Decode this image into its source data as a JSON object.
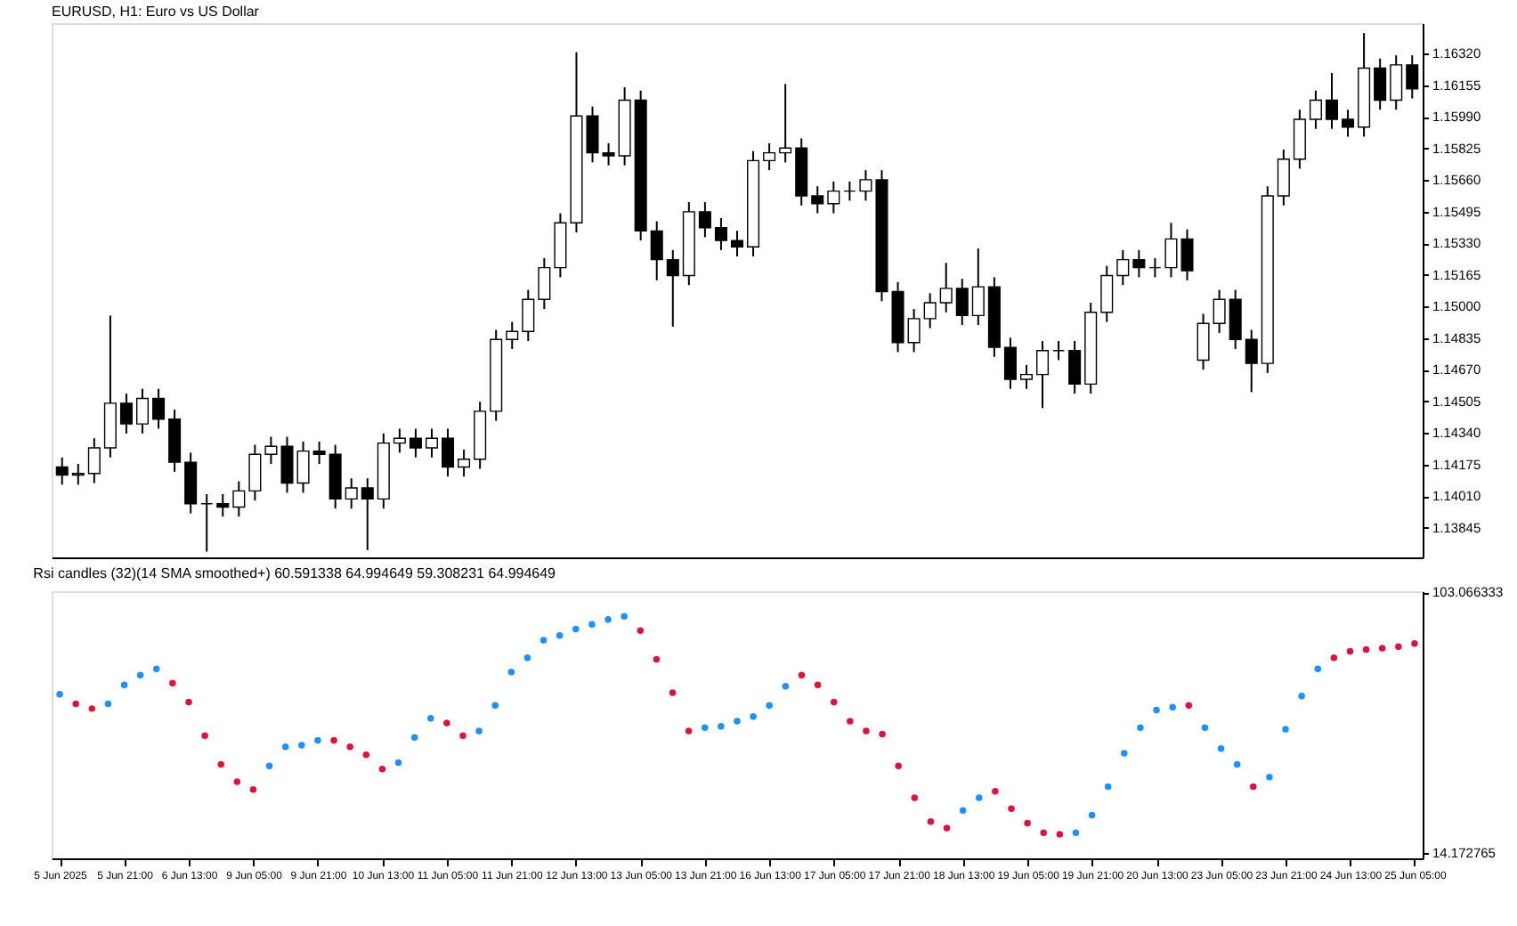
{
  "chart_data": [
    {
      "type": "candlestick",
      "title": "EURUSD, H1:  Euro vs US Dollar",
      "color": "#000000",
      "tick_labels": "y",
      "categories": [
        null,
        null,
        null,
        null,
        null,
        null,
        null,
        null,
        null,
        null,
        null,
        null,
        null,
        null,
        null,
        null,
        null,
        null,
        null,
        null,
        null,
        null,
        null,
        null,
        null,
        null,
        null,
        null,
        null,
        null,
        null,
        null,
        null,
        null,
        null,
        null,
        null,
        null,
        null,
        null,
        null,
        null,
        null,
        null,
        null,
        null,
        null,
        null,
        null,
        null,
        null,
        null,
        null,
        null,
        null,
        null,
        null,
        null,
        null,
        null,
        null,
        null,
        null,
        null,
        null,
        null,
        null,
        null,
        null,
        null,
        null,
        null,
        null,
        null,
        null,
        null,
        null,
        null,
        null,
        null,
        null,
        null,
        null,
        null,
        null
      ],
      "ohlc": [
        [
          1.14162,
          1.14212,
          1.1407,
          1.1412
        ],
        [
          1.1412,
          1.14178,
          1.1407,
          1.14128
        ],
        [
          1.14128,
          1.14312,
          1.14078,
          1.14262
        ],
        [
          1.14262,
          1.14953,
          1.14212,
          1.14495
        ],
        [
          1.14495,
          1.14545,
          1.14337,
          1.14387
        ],
        [
          1.14387,
          1.1457,
          1.14337,
          1.1452
        ],
        [
          1.1452,
          1.1457,
          1.14362,
          1.14412
        ],
        [
          1.14412,
          1.14462,
          1.14137,
          1.14187
        ],
        [
          1.14187,
          1.14237,
          1.1392,
          1.1397
        ],
        [
          1.1397,
          1.1402,
          1.1372,
          1.1397
        ],
        [
          1.1397,
          1.1402,
          1.13903,
          1.13953
        ],
        [
          1.13953,
          1.14087,
          1.13903,
          1.14037
        ],
        [
          1.14037,
          1.14278,
          1.13987,
          1.14228
        ],
        [
          1.14228,
          1.1432,
          1.14178,
          1.1427
        ],
        [
          1.1427,
          1.1432,
          1.14028,
          1.14078
        ],
        [
          1.14078,
          1.14295,
          1.14028,
          1.14245
        ],
        [
          1.14245,
          1.14295,
          1.14178,
          1.14228
        ],
        [
          1.14228,
          1.14278,
          1.13945,
          1.13995
        ],
        [
          1.13995,
          1.14103,
          1.13945,
          1.14053
        ],
        [
          1.14053,
          1.14103,
          1.13728,
          1.13995
        ],
        [
          1.13995,
          1.14337,
          1.13945,
          1.14287
        ],
        [
          1.14287,
          1.14362,
          1.14237,
          1.14312
        ],
        [
          1.14312,
          1.14362,
          1.14212,
          1.14262
        ],
        [
          1.14262,
          1.14362,
          1.14212,
          1.14312
        ],
        [
          1.14312,
          1.14362,
          1.14112,
          1.14162
        ],
        [
          1.14162,
          1.14253,
          1.14112,
          1.14203
        ],
        [
          1.14203,
          1.14503,
          1.14153,
          1.14453
        ],
        [
          1.14453,
          1.14878,
          1.14403,
          1.14828
        ],
        [
          1.14828,
          1.1492,
          1.14778,
          1.1487
        ],
        [
          1.1487,
          1.15087,
          1.1482,
          1.15037
        ],
        [
          1.15037,
          1.15253,
          1.14987,
          1.15203
        ],
        [
          1.15203,
          1.15487,
          1.15153,
          1.15437
        ],
        [
          1.15437,
          1.16328,
          1.15387,
          1.15995
        ],
        [
          1.15995,
          1.16045,
          1.15753,
          1.15803
        ],
        [
          1.15803,
          1.15853,
          1.15737,
          1.15787
        ],
        [
          1.15787,
          1.16145,
          1.15737,
          1.16078
        ],
        [
          1.16078,
          1.16128,
          1.15345,
          1.15395
        ],
        [
          1.15395,
          1.15445,
          1.15137,
          1.15245
        ],
        [
          1.15245,
          1.15295,
          1.14895,
          1.15162
        ],
        [
          1.15162,
          1.15545,
          1.15112,
          1.15495
        ],
        [
          1.15495,
          1.15545,
          1.15362,
          1.15412
        ],
        [
          1.15412,
          1.15462,
          1.15295,
          1.15345
        ],
        [
          1.15345,
          1.15395,
          1.15262,
          1.15312
        ],
        [
          1.15312,
          1.15812,
          1.15262,
          1.15762
        ],
        [
          1.15762,
          1.15853,
          1.15712,
          1.15803
        ],
        [
          1.15803,
          1.16162,
          1.15753,
          1.15828
        ],
        [
          1.15828,
          1.15878,
          1.15528,
          1.15578
        ],
        [
          1.15578,
          1.15628,
          1.15487,
          1.15537
        ],
        [
          1.15537,
          1.15653,
          1.15487,
          1.15603
        ],
        [
          1.15603,
          1.15653,
          1.15553,
          1.15603
        ],
        [
          1.15603,
          1.15712,
          1.15553,
          1.15662
        ],
        [
          1.15662,
          1.15712,
          1.15028,
          1.15078
        ],
        [
          1.15078,
          1.15128,
          1.14762,
          1.14812
        ],
        [
          1.14812,
          1.14987,
          1.14762,
          1.14937
        ],
        [
          1.14937,
          1.1507,
          1.14887,
          1.1502
        ],
        [
          1.1502,
          1.15228,
          1.1497,
          1.15095
        ],
        [
          1.15095,
          1.15145,
          1.14903,
          1.14953
        ],
        [
          1.14953,
          1.15303,
          1.14903,
          1.15103
        ],
        [
          1.15103,
          1.15153,
          1.14737,
          1.14787
        ],
        [
          1.14787,
          1.14837,
          1.1457,
          1.1462
        ],
        [
          1.1462,
          1.14695,
          1.1457,
          1.14645
        ],
        [
          1.14645,
          1.1482,
          1.1447,
          1.1477
        ],
        [
          1.1477,
          1.1482,
          1.1472,
          1.1477
        ],
        [
          1.1477,
          1.1482,
          1.14545,
          1.14595
        ],
        [
          1.14595,
          1.1502,
          1.14545,
          1.1497
        ],
        [
          1.1497,
          1.15212,
          1.1492,
          1.15162
        ],
        [
          1.15162,
          1.15295,
          1.15112,
          1.15245
        ],
        [
          1.15245,
          1.15295,
          1.15153,
          1.15203
        ],
        [
          1.15203,
          1.15253,
          1.15153,
          1.15203
        ],
        [
          1.15203,
          1.15437,
          1.15153,
          1.15353
        ],
        [
          1.15353,
          1.15403,
          1.15137,
          1.15187
        ],
        [
          1.1472,
          1.14962,
          1.1467,
          1.14912
        ],
        [
          1.14912,
          1.15087,
          1.14862,
          1.15037
        ],
        [
          1.15037,
          1.15087,
          1.14778,
          1.14828
        ],
        [
          1.14828,
          1.14878,
          1.14553,
          1.14703
        ],
        [
          1.14703,
          1.15628,
          1.14653,
          1.15578
        ],
        [
          1.15578,
          1.1582,
          1.15528,
          1.1577
        ],
        [
          1.1577,
          1.16028,
          1.1572,
          1.15978
        ],
        [
          1.15978,
          1.16128,
          1.15928,
          1.16078
        ],
        [
          1.16078,
          1.1622,
          1.15928,
          1.15978
        ],
        [
          1.15978,
          1.16028,
          1.15887,
          1.15937
        ],
        [
          1.15937,
          1.16428,
          1.15887,
          1.16245
        ],
        [
          1.16245,
          1.16295,
          1.16028,
          1.16078
        ],
        [
          1.16078,
          1.16312,
          1.16028,
          1.16262
        ],
        [
          1.16262,
          1.16312,
          1.16087,
          1.16137
        ]
      ],
      "ylim": [
        1.1369,
        1.1648
      ],
      "yticks": [
        {
          "value": 1.1632,
          "label": "1.16320"
        },
        1.16155,
        {
          "value": 1.1599,
          "label": "1.15990"
        },
        1.15825,
        {
          "value": 1.1566,
          "label": "1.15660"
        },
        1.15495,
        {
          "value": 1.1533,
          "label": "1.15330"
        },
        1.15165,
        {
          "value": 1.15,
          "label": "1.15000"
        },
        1.14835,
        {
          "value": 1.1467,
          "label": "1.14670"
        },
        1.14505,
        {
          "value": 1.1434,
          "label": "1.14340"
        },
        1.14175,
        {
          "value": 1.1401,
          "label": "1.14010"
        },
        1.13845
      ]
    },
    {
      "type": "scatter",
      "title": "Rsi candles (32)(14 SMA smoothed+) 60.591338 64.994649 59.308231 64.994649",
      "marker": "circle",
      "categories": [
        "5 Jun 2025",
        null,
        null,
        null,
        "5 Jun 21:00",
        null,
        null,
        null,
        "6 Jun 13:00",
        null,
        null,
        null,
        "9 Jun 05:00",
        null,
        null,
        null,
        "9 Jun 21:00",
        null,
        null,
        null,
        "10 Jun 13:00",
        null,
        null,
        null,
        "11 Jun 05:00",
        null,
        null,
        null,
        "11 Jun 21:00",
        null,
        null,
        null,
        "12 Jun 13:00",
        null,
        null,
        null,
        "13 Jun 05:00",
        null,
        null,
        null,
        "13 Jun 21:00",
        null,
        null,
        null,
        "16 Jun 13:00",
        null,
        null,
        null,
        "17 Jun 05:00",
        null,
        null,
        null,
        "17 Jun 21:00",
        null,
        null,
        null,
        "18 Jun 13:00",
        null,
        null,
        null,
        "19 Jun 05:00",
        null,
        null,
        null,
        "19 Jun 21:00",
        null,
        null,
        null,
        "20 Jun 13:00",
        null,
        null,
        null,
        "23 Jun 05:00",
        null,
        null,
        null,
        "23 Jun 21:00",
        null,
        null,
        null,
        "24 Jun 13:00",
        null,
        null,
        null,
        "25 Jun 05:00"
      ],
      "values": [
        68.4,
        65.1,
        63.5,
        65.1,
        71.6,
        74.9,
        77.0,
        72.2,
        65.7,
        54.3,
        44.5,
        38.6,
        35.9,
        44.0,
        50.5,
        51.0,
        52.7,
        52.7,
        50.5,
        47.8,
        42.9,
        45.1,
        53.7,
        60.2,
        58.6,
        54.3,
        55.9,
        64.6,
        76.0,
        80.8,
        86.8,
        88.4,
        90.6,
        92.2,
        93.9,
        94.9,
        90.1,
        80.3,
        68.9,
        55.9,
        57.0,
        57.5,
        59.2,
        60.8,
        64.6,
        71.1,
        74.9,
        71.6,
        65.7,
        59.2,
        55.9,
        54.8,
        44.0,
        33.1,
        25.0,
        22.8,
        28.8,
        33.1,
        35.3,
        29.4,
        24.5,
        21.2,
        20.7,
        21.2,
        27.2,
        36.9,
        48.3,
        57.0,
        63.0,
        64.0,
        64.6,
        57.0,
        49.9,
        44.5,
        36.9,
        40.2,
        56.5,
        67.8,
        77.0,
        80.8,
        83.0,
        83.6,
        84.1,
        84.6,
        85.7
      ],
      "colors": [
        "#1e90ff",
        "#dc143c",
        "#dc143c",
        "#1e90ff",
        "#1e90ff",
        "#1e90ff",
        "#1e90ff",
        "#dc143c",
        "#dc143c",
        "#dc143c",
        "#dc143c",
        "#dc143c",
        "#dc143c",
        "#1e90ff",
        "#1e90ff",
        "#1e90ff",
        "#1e90ff",
        "#dc143c",
        "#dc143c",
        "#dc143c",
        "#dc143c",
        "#1e90ff",
        "#1e90ff",
        "#1e90ff",
        "#dc143c",
        "#dc143c",
        "#1e90ff",
        "#1e90ff",
        "#1e90ff",
        "#1e90ff",
        "#1e90ff",
        "#1e90ff",
        "#1e90ff",
        "#1e90ff",
        "#1e90ff",
        "#1e90ff",
        "#dc143c",
        "#dc143c",
        "#dc143c",
        "#dc143c",
        "#1e90ff",
        "#1e90ff",
        "#1e90ff",
        "#1e90ff",
        "#1e90ff",
        "#1e90ff",
        "#dc143c",
        "#dc143c",
        "#dc143c",
        "#dc143c",
        "#dc143c",
        "#dc143c",
        "#dc143c",
        "#dc143c",
        "#dc143c",
        "#dc143c",
        "#1e90ff",
        "#1e90ff",
        "#dc143c",
        "#dc143c",
        "#dc143c",
        "#dc143c",
        "#dc143c",
        "#1e90ff",
        "#1e90ff",
        "#1e90ff",
        "#1e90ff",
        "#1e90ff",
        "#1e90ff",
        "#1e90ff",
        "#dc143c",
        "#1e90ff",
        "#1e90ff",
        "#1e90ff",
        "#dc143c",
        "#1e90ff",
        "#1e90ff",
        "#1e90ff",
        "#1e90ff",
        "#dc143c",
        "#dc143c",
        "#dc143c",
        "#dc143c",
        "#dc143c",
        "#dc143c"
      ],
      "ylim": [
        12.5,
        103.5
      ],
      "yticks": [
        103.066333,
        14.172765
      ]
    }
  ]
}
